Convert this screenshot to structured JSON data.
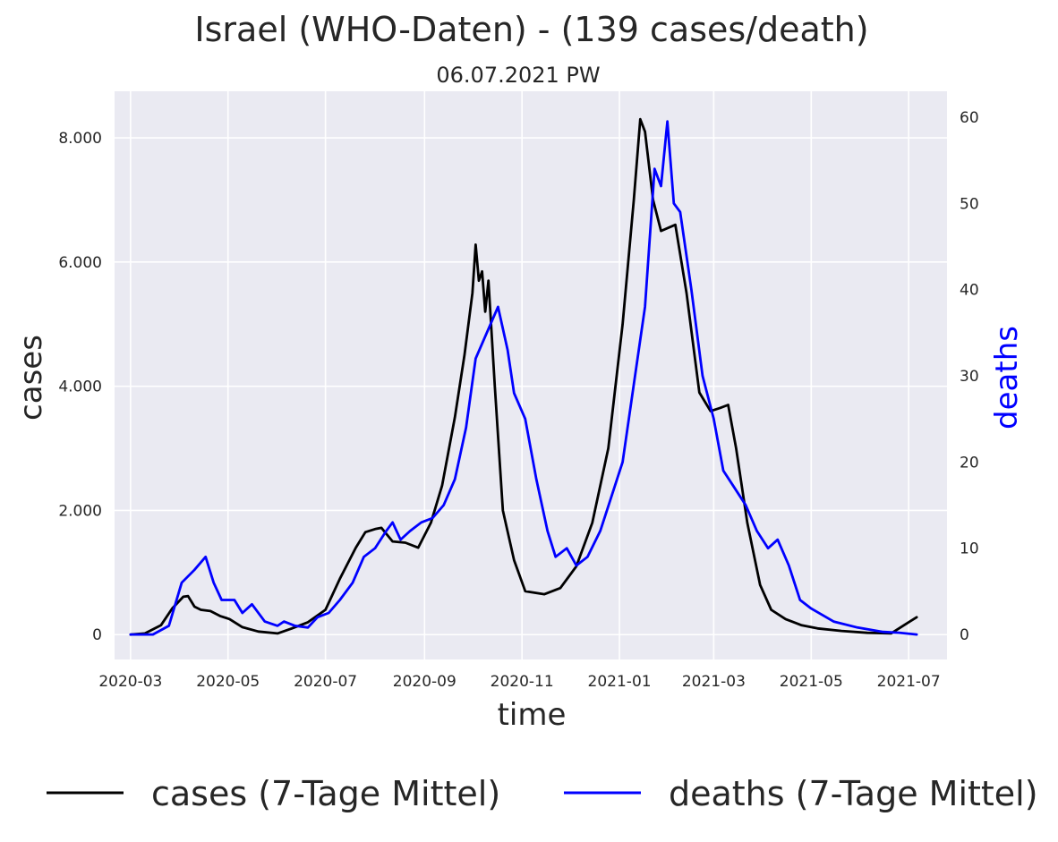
{
  "chart_data": {
    "type": "line",
    "title": "Israel (WHO-Daten) - (139 cases/death)",
    "subtitle": "06.07.2021 PW",
    "xlabel": "time",
    "ylabel": "cases",
    "ylabel_right": "deaths",
    "x_ticks": [
      "2020-03",
      "2020-05",
      "2020-07",
      "2020-09",
      "2020-11",
      "2021-01",
      "2021-03",
      "2021-05",
      "2021-07"
    ],
    "y_ticks_left": [
      "0",
      "2.000",
      "4.000",
      "6.000",
      "8.000"
    ],
    "y_ticks_right": [
      "0",
      "10",
      "20",
      "30",
      "40",
      "50",
      "60"
    ],
    "ylim_left": [
      -400,
      8750
    ],
    "ylim_right": [
      -2.9,
      63
    ],
    "xlim": [
      "2020-02-20",
      "2021-07-25"
    ],
    "grid": true,
    "legend_position": "bottom",
    "colors": {
      "cases": "#000000",
      "deaths": "#0000ff",
      "background": "#eaeaf2"
    },
    "series": [
      {
        "name": "cases (7-Tage Mittel)",
        "axis": "left",
        "color": "#000000",
        "points": [
          [
            "2020-03-01",
            0
          ],
          [
            "2020-03-10",
            20
          ],
          [
            "2020-03-20",
            150
          ],
          [
            "2020-03-27",
            420
          ],
          [
            "2020-04-03",
            610
          ],
          [
            "2020-04-06",
            620
          ],
          [
            "2020-04-10",
            450
          ],
          [
            "2020-04-14",
            400
          ],
          [
            "2020-04-20",
            380
          ],
          [
            "2020-04-26",
            300
          ],
          [
            "2020-05-02",
            250
          ],
          [
            "2020-05-10",
            120
          ],
          [
            "2020-05-20",
            50
          ],
          [
            "2020-06-01",
            20
          ],
          [
            "2020-06-10",
            100
          ],
          [
            "2020-06-20",
            200
          ],
          [
            "2020-07-01",
            400
          ],
          [
            "2020-07-10",
            900
          ],
          [
            "2020-07-20",
            1400
          ],
          [
            "2020-07-26",
            1650
          ],
          [
            "2020-08-01",
            1700
          ],
          [
            "2020-08-05",
            1720
          ],
          [
            "2020-08-12",
            1500
          ],
          [
            "2020-08-20",
            1480
          ],
          [
            "2020-08-28",
            1400
          ],
          [
            "2020-09-05",
            1800
          ],
          [
            "2020-09-12",
            2400
          ],
          [
            "2020-09-20",
            3500
          ],
          [
            "2020-09-26",
            4500
          ],
          [
            "2020-10-01",
            5500
          ],
          [
            "2020-10-03",
            6280
          ],
          [
            "2020-10-05",
            5700
          ],
          [
            "2020-10-07",
            5850
          ],
          [
            "2020-10-09",
            5200
          ],
          [
            "2020-10-11",
            5700
          ],
          [
            "2020-10-15",
            4000
          ],
          [
            "2020-10-20",
            2000
          ],
          [
            "2020-10-27",
            1200
          ],
          [
            "2020-11-03",
            700
          ],
          [
            "2020-11-15",
            650
          ],
          [
            "2020-11-25",
            750
          ],
          [
            "2020-12-05",
            1100
          ],
          [
            "2020-12-15",
            1800
          ],
          [
            "2020-12-25",
            3000
          ],
          [
            "2021-01-03",
            5000
          ],
          [
            "2021-01-10",
            7000
          ],
          [
            "2021-01-14",
            8300
          ],
          [
            "2021-01-17",
            8100
          ],
          [
            "2021-01-22",
            7000
          ],
          [
            "2021-01-27",
            6500
          ],
          [
            "2021-02-05",
            6600
          ],
          [
            "2021-02-12",
            5500
          ],
          [
            "2021-02-20",
            3900
          ],
          [
            "2021-02-27",
            3600
          ],
          [
            "2021-03-05",
            3650
          ],
          [
            "2021-03-10",
            3700
          ],
          [
            "2021-03-15",
            3000
          ],
          [
            "2021-03-22",
            1800
          ],
          [
            "2021-03-30",
            800
          ],
          [
            "2021-04-06",
            400
          ],
          [
            "2021-04-15",
            250
          ],
          [
            "2021-04-25",
            150
          ],
          [
            "2021-05-05",
            100
          ],
          [
            "2021-05-20",
            60
          ],
          [
            "2021-06-05",
            30
          ],
          [
            "2021-06-20",
            20
          ],
          [
            "2021-06-28",
            150
          ],
          [
            "2021-07-06",
            280
          ]
        ]
      },
      {
        "name": "deaths (7-Tage Mittel)",
        "axis": "right",
        "color": "#0000ff",
        "points": [
          [
            "2020-03-01",
            0
          ],
          [
            "2020-03-15",
            0
          ],
          [
            "2020-03-25",
            1
          ],
          [
            "2020-04-02",
            6
          ],
          [
            "2020-04-10",
            7.5
          ],
          [
            "2020-04-17",
            9
          ],
          [
            "2020-04-22",
            6
          ],
          [
            "2020-04-27",
            4
          ],
          [
            "2020-05-05",
            4
          ],
          [
            "2020-05-10",
            2.5
          ],
          [
            "2020-05-16",
            3.5
          ],
          [
            "2020-05-24",
            1.5
          ],
          [
            "2020-06-01",
            1
          ],
          [
            "2020-06-05",
            1.5
          ],
          [
            "2020-06-12",
            1
          ],
          [
            "2020-06-20",
            0.8
          ],
          [
            "2020-06-26",
            2
          ],
          [
            "2020-07-03",
            2.5
          ],
          [
            "2020-07-10",
            4
          ],
          [
            "2020-07-18",
            6
          ],
          [
            "2020-07-25",
            9
          ],
          [
            "2020-08-01",
            10
          ],
          [
            "2020-08-08",
            12
          ],
          [
            "2020-08-12",
            13
          ],
          [
            "2020-08-17",
            11
          ],
          [
            "2020-08-23",
            12
          ],
          [
            "2020-08-30",
            13
          ],
          [
            "2020-09-06",
            13.5
          ],
          [
            "2020-09-13",
            15
          ],
          [
            "2020-09-20",
            18
          ],
          [
            "2020-09-27",
            24
          ],
          [
            "2020-10-03",
            32
          ],
          [
            "2020-10-10",
            35
          ],
          [
            "2020-10-17",
            38
          ],
          [
            "2020-10-23",
            33
          ],
          [
            "2020-10-27",
            28
          ],
          [
            "2020-11-03",
            25
          ],
          [
            "2020-11-10",
            18
          ],
          [
            "2020-11-17",
            12
          ],
          [
            "2020-11-22",
            9
          ],
          [
            "2020-11-29",
            10
          ],
          [
            "2020-12-05",
            8
          ],
          [
            "2020-12-12",
            9
          ],
          [
            "2020-12-20",
            12
          ],
          [
            "2020-12-27",
            16
          ],
          [
            "2021-01-03",
            20
          ],
          [
            "2021-01-10",
            29
          ],
          [
            "2021-01-17",
            38
          ],
          [
            "2021-01-23",
            54
          ],
          [
            "2021-01-27",
            52
          ],
          [
            "2021-01-31",
            59.5
          ],
          [
            "2021-02-04",
            50
          ],
          [
            "2021-02-08",
            49
          ],
          [
            "2021-02-15",
            40
          ],
          [
            "2021-02-22",
            30
          ],
          [
            "2021-03-01",
            25
          ],
          [
            "2021-03-07",
            19
          ],
          [
            "2021-03-14",
            17
          ],
          [
            "2021-03-21",
            15
          ],
          [
            "2021-03-28",
            12
          ],
          [
            "2021-04-04",
            10
          ],
          [
            "2021-04-10",
            11
          ],
          [
            "2021-04-17",
            8
          ],
          [
            "2021-04-24",
            4
          ],
          [
            "2021-05-01",
            3
          ],
          [
            "2021-05-15",
            1.5
          ],
          [
            "2021-05-30",
            0.8
          ],
          [
            "2021-06-15",
            0.3
          ],
          [
            "2021-06-25",
            0.2
          ],
          [
            "2021-07-06",
            0
          ]
        ]
      }
    ]
  }
}
